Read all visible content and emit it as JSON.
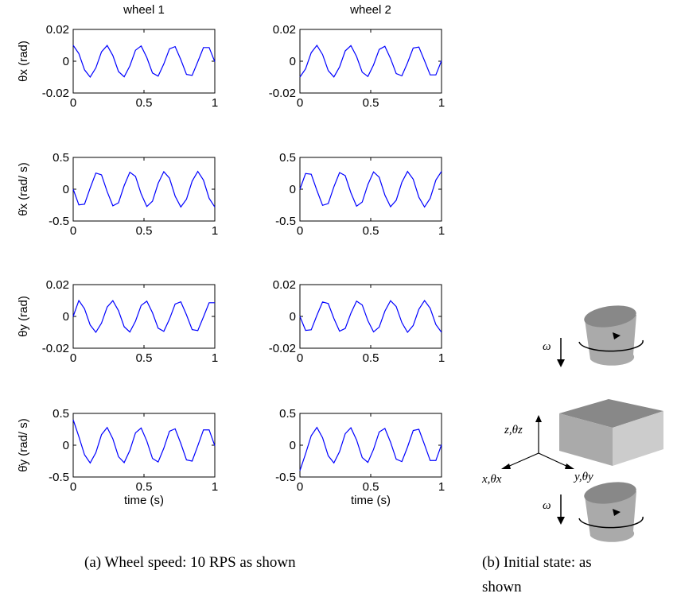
{
  "chart_data": [
    {
      "type": "line",
      "title": "wheel 1",
      "ylabel": "θx (rad)",
      "xlim": [
        0,
        1
      ],
      "xticks": [
        0,
        0.5,
        1
      ],
      "ylim": [
        -0.02,
        0.02
      ],
      "yticks": [
        -0.02,
        0,
        0.02
      ],
      "color": "#0000ff",
      "x": [
        0,
        0.04,
        0.08,
        0.12,
        0.16,
        0.2,
        0.24,
        0.28,
        0.32,
        0.36,
        0.4,
        0.44,
        0.48,
        0.52,
        0.56,
        0.6,
        0.64,
        0.68,
        0.72,
        0.76,
        0.8,
        0.84,
        0.88,
        0.92,
        0.96,
        1
      ],
      "values": [
        0.01,
        0.0048,
        -0.0054,
        -0.01,
        -0.0042,
        0.0059,
        0.0099,
        0.0036,
        -0.0065,
        -0.0098,
        -0.003,
        0.0069,
        0.0096,
        0.0023,
        -0.0074,
        -0.0094,
        -0.0017,
        0.0078,
        0.0092,
        0.001,
        -0.0083,
        -0.0089,
        -0.0003,
        0.0086,
        0.0086,
        -0.0003
      ]
    },
    {
      "type": "line",
      "title": "wheel 2",
      "xlim": [
        0,
        1
      ],
      "xticks": [
        0,
        0.5,
        1
      ],
      "ylim": [
        -0.02,
        0.02
      ],
      "yticks": [
        -0.02,
        0,
        0.02
      ],
      "color": "#0000ff",
      "x": [
        0,
        0.04,
        0.08,
        0.12,
        0.16,
        0.2,
        0.24,
        0.28,
        0.32,
        0.36,
        0.4,
        0.44,
        0.48,
        0.52,
        0.56,
        0.6,
        0.64,
        0.68,
        0.72,
        0.76,
        0.8,
        0.84,
        0.88,
        0.92,
        0.96,
        1
      ],
      "values": [
        -0.01,
        -0.0048,
        0.0054,
        0.01,
        0.0042,
        -0.0059,
        -0.0099,
        -0.0036,
        0.0065,
        0.0098,
        0.003,
        -0.0069,
        -0.0096,
        -0.0023,
        0.0074,
        0.0094,
        0.0017,
        -0.0078,
        -0.0092,
        -0.001,
        0.0083,
        0.0089,
        0.0003,
        -0.0086,
        -0.0086,
        0.0003
      ]
    },
    {
      "type": "line",
      "ylabel": "θ̇x (rad/ s)",
      "xlim": [
        0,
        1
      ],
      "xticks": [
        0,
        0.5,
        1
      ],
      "ylim": [
        -0.5,
        0.5
      ],
      "yticks": [
        -0.5,
        0,
        0.5
      ],
      "color": "#0000ff",
      "x": [
        0,
        0.04,
        0.08,
        0.12,
        0.16,
        0.2,
        0.24,
        0.28,
        0.32,
        0.36,
        0.4,
        0.44,
        0.48,
        0.52,
        0.56,
        0.6,
        0.64,
        0.68,
        0.72,
        0.76,
        0.8,
        0.84,
        0.88,
        0.92,
        0.96,
        1
      ],
      "values": [
        0,
        -0.246,
        -0.236,
        0.019,
        0.254,
        0.226,
        -0.038,
        -0.261,
        -0.214,
        0.056,
        0.267,
        0.202,
        -0.074,
        -0.272,
        -0.188,
        0.092,
        0.276,
        0.174,
        -0.109,
        -0.279,
        -0.158,
        0.126,
        0.28,
        0.143,
        -0.143,
        -0.28
      ]
    },
    {
      "type": "line",
      "xlim": [
        0,
        1
      ],
      "xticks": [
        0,
        0.5,
        1
      ],
      "ylim": [
        -0.5,
        0.5
      ],
      "yticks": [
        -0.5,
        0,
        0.5
      ],
      "color": "#0000ff",
      "x": [
        0,
        0.04,
        0.08,
        0.12,
        0.16,
        0.2,
        0.24,
        0.28,
        0.32,
        0.36,
        0.4,
        0.44,
        0.48,
        0.52,
        0.56,
        0.6,
        0.64,
        0.68,
        0.72,
        0.76,
        0.8,
        0.84,
        0.88,
        0.92,
        0.96,
        1
      ],
      "values": [
        0,
        0.246,
        0.236,
        -0.019,
        -0.254,
        -0.226,
        0.038,
        0.261,
        0.214,
        -0.056,
        -0.267,
        -0.202,
        0.074,
        0.272,
        0.188,
        -0.092,
        -0.276,
        -0.174,
        0.109,
        0.279,
        0.158,
        -0.126,
        -0.28,
        -0.143,
        0.143,
        0.28
      ]
    },
    {
      "type": "line",
      "ylabel": "θy (rad)",
      "xlim": [
        0,
        1
      ],
      "xticks": [
        0,
        0.5,
        1
      ],
      "ylim": [
        -0.02,
        0.02
      ],
      "yticks": [
        -0.02,
        0,
        0.02
      ],
      "color": "#0000ff",
      "x": [
        0,
        0.04,
        0.08,
        0.12,
        0.16,
        0.2,
        0.24,
        0.28,
        0.32,
        0.36,
        0.4,
        0.44,
        0.48,
        0.52,
        0.56,
        0.6,
        0.64,
        0.68,
        0.72,
        0.76,
        0.8,
        0.84,
        0.88,
        0.92,
        0.96,
        1
      ],
      "values": [
        0,
        0.01,
        0.0048,
        -0.0054,
        -0.01,
        -0.0042,
        0.0059,
        0.0099,
        0.0036,
        -0.0065,
        -0.0098,
        -0.003,
        0.0069,
        0.0096,
        0.0023,
        -0.0074,
        -0.0094,
        -0.0017,
        0.0078,
        0.0092,
        0.001,
        -0.0083,
        -0.0089,
        -0.0003,
        0.0086,
        0.0086
      ]
    },
    {
      "type": "line",
      "xlim": [
        0,
        1
      ],
      "xticks": [
        0,
        0.5,
        1
      ],
      "ylim": [
        -0.02,
        0.02
      ],
      "yticks": [
        -0.02,
        0,
        0.02
      ],
      "color": "#0000ff",
      "x": [
        0,
        0.04,
        0.08,
        0.12,
        0.16,
        0.2,
        0.24,
        0.28,
        0.32,
        0.36,
        0.4,
        0.44,
        0.48,
        0.52,
        0.56,
        0.6,
        0.64,
        0.68,
        0.72,
        0.76,
        0.8,
        0.84,
        0.88,
        0.92,
        0.96,
        1
      ],
      "values": [
        0,
        -0.0088,
        -0.0084,
        0.0007,
        0.0091,
        0.0081,
        -0.0013,
        -0.0093,
        -0.0076,
        0.002,
        0.0096,
        0.0072,
        -0.0027,
        -0.0097,
        -0.0067,
        0.0033,
        0.0099,
        0.0062,
        -0.0039,
        -0.01,
        -0.0057,
        0.0045,
        0.01,
        0.0051,
        -0.0051,
        -0.01
      ]
    },
    {
      "type": "line",
      "ylabel": "θ̇y (rad/ s)",
      "xlabel": "time (s)",
      "xlim": [
        0,
        1
      ],
      "xticks": [
        0,
        0.5,
        1
      ],
      "ylim": [
        -0.5,
        0.5
      ],
      "yticks": [
        -0.5,
        0,
        0.5
      ],
      "color": "#0000ff",
      "x": [
        0,
        0.04,
        0.08,
        0.12,
        0.16,
        0.2,
        0.24,
        0.28,
        0.32,
        0.36,
        0.4,
        0.44,
        0.48,
        0.52,
        0.56,
        0.6,
        0.64,
        0.68,
        0.72,
        0.76,
        0.8,
        0.84,
        0.88,
        0.92,
        0.96,
        1
      ],
      "values": [
        0.4,
        0.135,
        -0.15,
        -0.279,
        -0.118,
        0.166,
        0.278,
        0.1,
        -0.181,
        -0.274,
        -0.083,
        0.194,
        0.27,
        0.065,
        -0.208,
        -0.264,
        -0.047,
        0.22,
        0.258,
        0.028,
        -0.231,
        -0.25,
        -0.009,
        0.241,
        0.241,
        -0.009
      ]
    },
    {
      "type": "line",
      "xlabel": "time (s)",
      "xlim": [
        0,
        1
      ],
      "xticks": [
        0,
        0.5,
        1
      ],
      "ylim": [
        -0.5,
        0.5
      ],
      "yticks": [
        -0.5,
        0,
        0.5
      ],
      "color": "#0000ff",
      "x": [
        0,
        0.04,
        0.08,
        0.12,
        0.16,
        0.2,
        0.24,
        0.28,
        0.32,
        0.36,
        0.4,
        0.44,
        0.48,
        0.52,
        0.56,
        0.6,
        0.64,
        0.68,
        0.72,
        0.76,
        0.8,
        0.84,
        0.88,
        0.92,
        0.96,
        1
      ],
      "values": [
        -0.4,
        -0.135,
        0.15,
        0.279,
        0.118,
        -0.166,
        -0.278,
        -0.1,
        0.181,
        0.274,
        0.083,
        -0.194,
        -0.27,
        -0.065,
        0.208,
        0.264,
        0.047,
        -0.22,
        -0.258,
        -0.028,
        0.231,
        0.25,
        0.009,
        -0.241,
        -0.241,
        0.009
      ]
    }
  ],
  "diagram": {
    "omega_top": "ω",
    "omega_bottom": "ω",
    "z_label": "z,θz",
    "x_label": "x,θx",
    "y_label": "y,θy"
  },
  "captions": {
    "a": "(a) Wheel speed: 10 RPS as shown",
    "b_line1": "(b) Initial state: as",
    "b_line2": "shown"
  }
}
